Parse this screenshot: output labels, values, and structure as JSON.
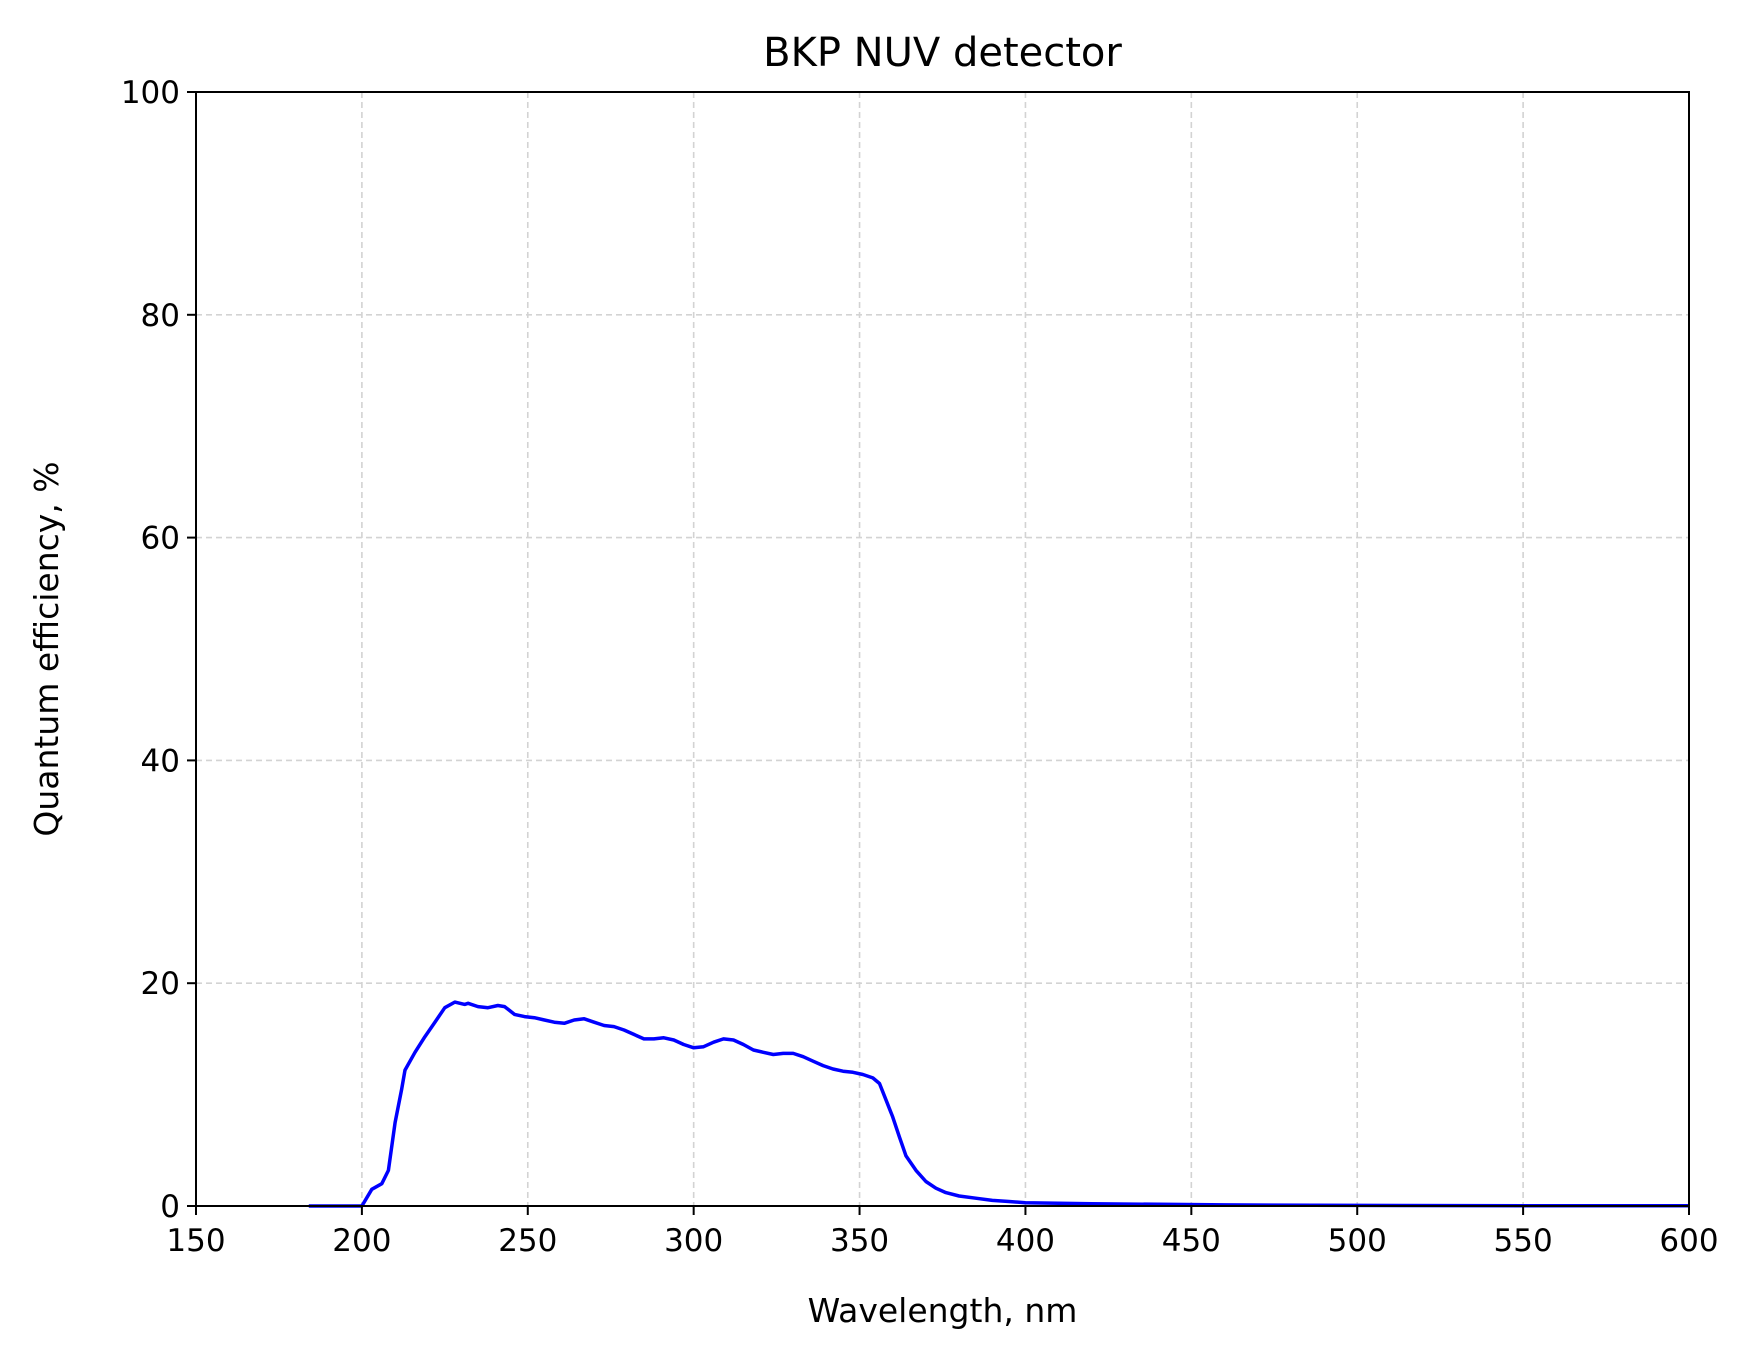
{
  "chart_data": {
    "type": "line",
    "title": "BKP NUV detector",
    "xlabel": "Wavelength, nm",
    "ylabel": "Quantum efficiency, %",
    "xlim": [
      150,
      600
    ],
    "ylim": [
      0,
      100
    ],
    "xticks": [
      150,
      200,
      250,
      300,
      350,
      400,
      450,
      500,
      550,
      600
    ],
    "yticks": [
      0,
      20,
      40,
      60,
      80,
      100
    ],
    "grid": true,
    "line_color": "#0000ff",
    "grid_color": "#d3d3d3",
    "series": [
      {
        "x": [
          184,
          190,
          195,
          200,
          203,
          206,
          208,
          210,
          212,
          213,
          216,
          219,
          222,
          225,
          228,
          231,
          232,
          235,
          238,
          241,
          243,
          246,
          249,
          252,
          255,
          258,
          261,
          264,
          267,
          270,
          273,
          276,
          279,
          282,
          285,
          288,
          291,
          294,
          297,
          300,
          303,
          306,
          309,
          312,
          315,
          318,
          321,
          324,
          327,
          330,
          333,
          336,
          339,
          342,
          345,
          348,
          351,
          354,
          356,
          358,
          360,
          362,
          364,
          367,
          370,
          373,
          376,
          380,
          385,
          390,
          395,
          400,
          410,
          420,
          440,
          460,
          500,
          550,
          600
        ],
        "y": [
          0,
          0,
          0,
          0,
          1.5,
          2.0,
          3.2,
          7.5,
          10.5,
          12.2,
          13.8,
          15.2,
          16.5,
          17.8,
          18.3,
          18.1,
          18.2,
          17.9,
          17.8,
          18.0,
          17.9,
          17.2,
          17.0,
          16.9,
          16.7,
          16.5,
          16.4,
          16.7,
          16.8,
          16.5,
          16.2,
          16.1,
          15.8,
          15.4,
          15.0,
          15.0,
          15.1,
          14.9,
          14.5,
          14.2,
          14.3,
          14.7,
          15.0,
          14.9,
          14.5,
          14.0,
          13.8,
          13.6,
          13.7,
          13.7,
          13.4,
          13.0,
          12.6,
          12.3,
          12.1,
          12.0,
          11.8,
          11.5,
          11.0,
          9.5,
          8.0,
          6.2,
          4.5,
          3.2,
          2.2,
          1.6,
          1.2,
          0.9,
          0.7,
          0.5,
          0.4,
          0.3,
          0.25,
          0.2,
          0.15,
          0.1,
          0.05,
          0.03,
          0.02
        ]
      }
    ]
  }
}
